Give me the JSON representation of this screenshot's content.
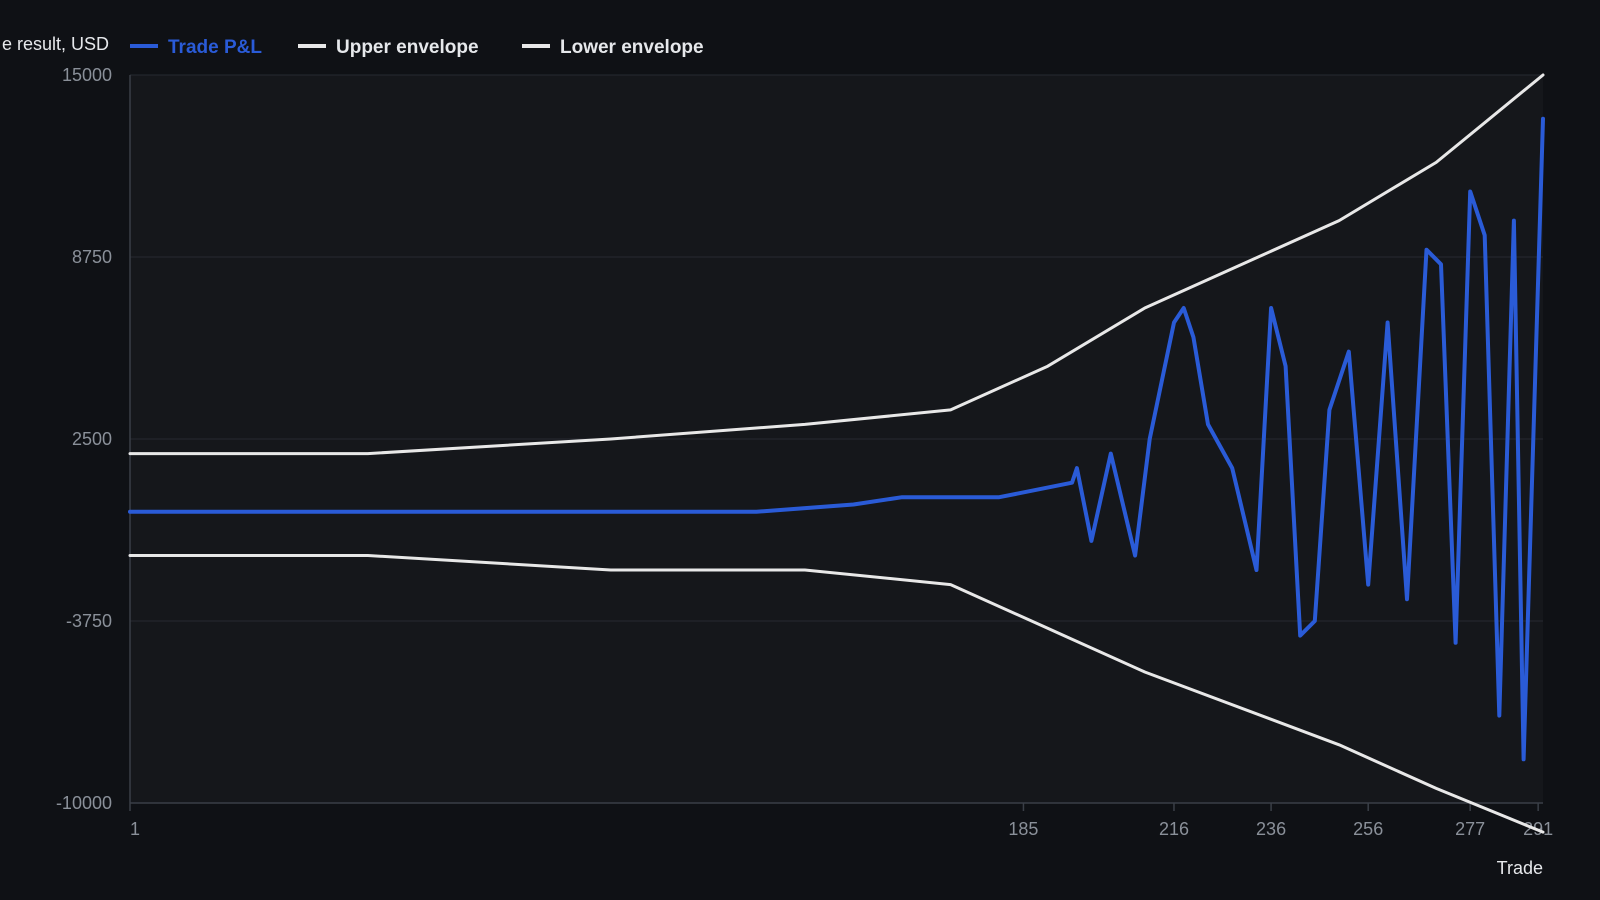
{
  "chart_data": {
    "type": "line",
    "ylabel": "e result, USD",
    "xlabel": "Trade",
    "xlim": [
      1,
      292
    ],
    "ylim": [
      -10000,
      15000
    ],
    "yticks": [
      15000,
      8750,
      2500,
      -3750,
      -10000
    ],
    "xticks": [
      1,
      185,
      216,
      236,
      256,
      277,
      291
    ],
    "grid": true,
    "legend_position": "top-left",
    "colors": {
      "background": "#0f1115",
      "plot_background": "#15171b",
      "grid": "#262a31",
      "axis": "#3a3f47",
      "tick_text": "#8a9099",
      "label_text": "#e6e8eb"
    },
    "series": [
      {
        "name": "Trade P&L",
        "color": "#2a5bd7",
        "points": [
          [
            1,
            0
          ],
          [
            50,
            0
          ],
          [
            100,
            0
          ],
          [
            130,
            0
          ],
          [
            150,
            250
          ],
          [
            160,
            500
          ],
          [
            170,
            500
          ],
          [
            180,
            500
          ],
          [
            195,
            1000
          ],
          [
            196,
            1500
          ],
          [
            199,
            -1000
          ],
          [
            203,
            2000
          ],
          [
            208,
            -1500
          ],
          [
            211,
            2500
          ],
          [
            216,
            6500
          ],
          [
            218,
            7000
          ],
          [
            220,
            6000
          ],
          [
            223,
            3000
          ],
          [
            228,
            1500
          ],
          [
            233,
            -2000
          ],
          [
            236,
            7000
          ],
          [
            239,
            5000
          ],
          [
            242,
            -4250
          ],
          [
            245,
            -3750
          ],
          [
            248,
            3500
          ],
          [
            252,
            5500
          ],
          [
            256,
            -2500
          ],
          [
            260,
            6500
          ],
          [
            264,
            -3000
          ],
          [
            268,
            9000
          ],
          [
            271,
            8500
          ],
          [
            274,
            -4500
          ],
          [
            277,
            11000
          ],
          [
            280,
            9500
          ],
          [
            283,
            -7000
          ],
          [
            286,
            10000
          ],
          [
            288,
            -8500
          ],
          [
            292,
            13500
          ]
        ]
      },
      {
        "name": "Upper envelope",
        "color": "#e8e8e8",
        "points": [
          [
            1,
            2000
          ],
          [
            50,
            2000
          ],
          [
            100,
            2500
          ],
          [
            140,
            3000
          ],
          [
            170,
            3500
          ],
          [
            190,
            5000
          ],
          [
            210,
            7000
          ],
          [
            250,
            10000
          ],
          [
            270,
            12000
          ],
          [
            292,
            15000
          ]
        ]
      },
      {
        "name": "Lower envelope",
        "color": "#e8e8e8",
        "points": [
          [
            1,
            -1500
          ],
          [
            50,
            -1500
          ],
          [
            100,
            -2000
          ],
          [
            140,
            -2000
          ],
          [
            170,
            -2500
          ],
          [
            190,
            -4000
          ],
          [
            210,
            -5500
          ],
          [
            250,
            -8000
          ],
          [
            270,
            -9500
          ],
          [
            292,
            -11000
          ]
        ]
      }
    ]
  }
}
